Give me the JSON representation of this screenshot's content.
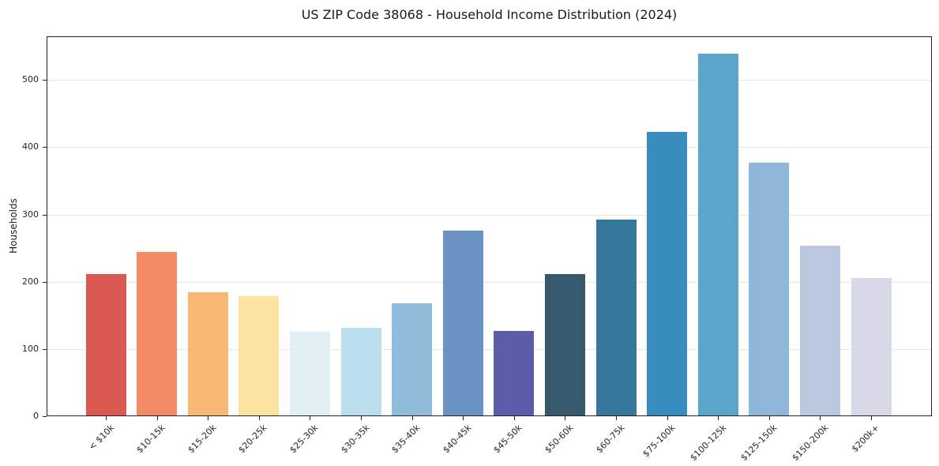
{
  "chart_data": {
    "type": "bar",
    "title": "US ZIP Code 38068 - Household Income Distribution (2024)",
    "xlabel": "",
    "ylabel": "Households",
    "categories": [
      "< $10k",
      "$10-15k",
      "$15-20k",
      "$20-25k",
      "$25-30k",
      "$30-35k",
      "$35-40k",
      "$40-45k",
      "$45-50k",
      "$50-60k",
      "$60-75k",
      "$75-100k",
      "$100-125k",
      "$125-150k",
      "$150-200k",
      "$200k+"
    ],
    "values": [
      212,
      244,
      185,
      178,
      126,
      132,
      168,
      276,
      127,
      211,
      292,
      423,
      539,
      377,
      254,
      205
    ],
    "bar_colors": [
      "#d95852",
      "#f38a66",
      "#f9b873",
      "#fce3a2",
      "#e2f0f5",
      "#bbdeec",
      "#90bcd9",
      "#6b92c4",
      "#5b5caa",
      "#36596e",
      "#35789c",
      "#388cbe",
      "#5aa5ca",
      "#8fb7d9",
      "#b9c8de",
      "#d7d9e6"
    ],
    "yticks": [
      0,
      100,
      200,
      300,
      400,
      500
    ],
    "ylim": [
      0,
      565
    ],
    "grid": "horizontal-only",
    "legend_position": "none",
    "x_tick_rotation_deg": 45
  },
  "style_colors": {
    "background": "#ffffff",
    "gridline": "#e7e7e7",
    "spine": "#222222",
    "text": "#262626"
  }
}
